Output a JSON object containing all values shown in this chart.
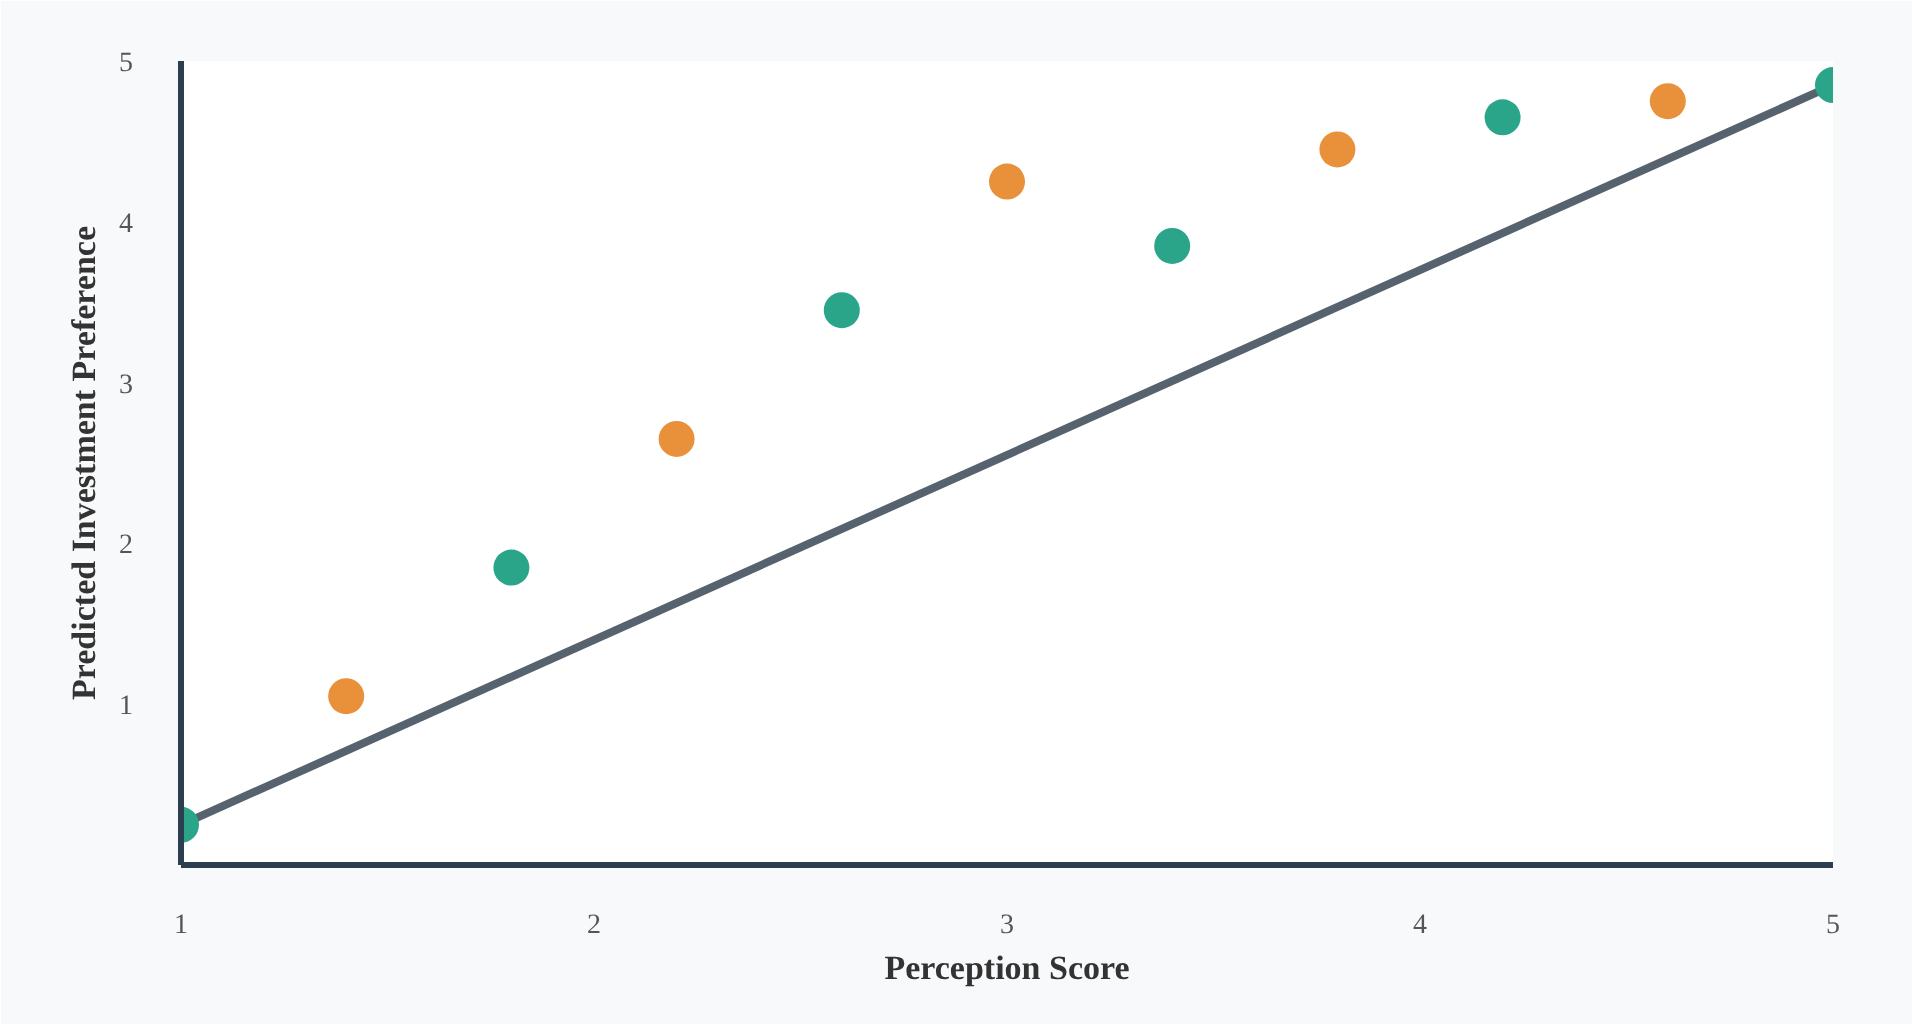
{
  "chart_data": {
    "type": "scatter",
    "xlabel": "Perception Score",
    "ylabel": "Predicted Investment Preference",
    "xlim": [
      1,
      5
    ],
    "ylim": [
      0,
      5
    ],
    "xticks": [
      1,
      2,
      3,
      4,
      5
    ],
    "yticks": [
      1,
      2,
      3,
      4,
      5
    ],
    "grid": false,
    "marker": "circle",
    "series": [
      {
        "color": "#2aa58a",
        "x": [
          1,
          1.8,
          2.6,
          3.4,
          4.2,
          5
        ],
        "values": [
          0.25,
          1.85,
          3.45,
          3.85,
          4.65,
          4.85
        ]
      },
      {
        "color": "#e8913a",
        "x": [
          1.4,
          2.2,
          3.0,
          3.8,
          4.6
        ],
        "values": [
          1.05,
          2.65,
          4.25,
          4.45,
          4.75
        ]
      },
      {
        "type": "line",
        "marker": "none",
        "color": "#56636f",
        "line_style": "solid",
        "x": [
          1,
          5
        ],
        "values": [
          0.25,
          4.85
        ]
      }
    ]
  }
}
